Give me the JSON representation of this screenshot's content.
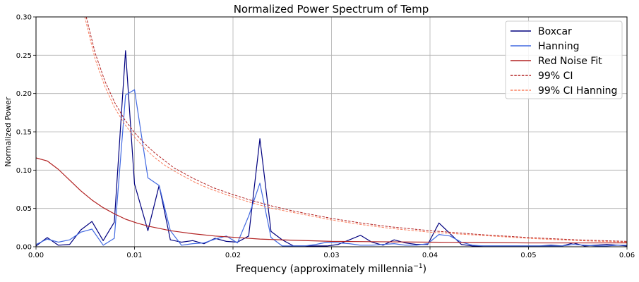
{
  "chart_data": {
    "type": "line",
    "title": "Normalized Power Spectrum of Temp",
    "xlabel": "Frequency (approximately millennia",
    "xlabel_sup": "−1",
    "xlabel_close": ")",
    "ylabel": "Normalized Power",
    "xlim": [
      0.0,
      0.06
    ],
    "ylim": [
      0.0,
      0.3
    ],
    "grid": true,
    "legend_position": "top-right",
    "x_ticks": [
      0.0,
      0.01,
      0.02,
      0.03,
      0.04,
      0.05,
      0.06
    ],
    "x_tick_labels": [
      "0.00",
      "0.01",
      "0.02",
      "0.03",
      "0.04",
      "0.05",
      "0.06"
    ],
    "y_ticks": [
      0.0,
      0.05,
      0.1,
      0.15,
      0.2,
      0.25,
      0.3
    ],
    "y_tick_labels": [
      "0.00",
      "0.05",
      "0.10",
      "0.15",
      "0.20",
      "0.25",
      "0.30"
    ],
    "series": [
      {
        "name": "Boxcar",
        "color": "#00007f",
        "style": "solid",
        "x": [
          0.0,
          0.00114,
          0.00227,
          0.00341,
          0.00455,
          0.00568,
          0.00682,
          0.00795,
          0.00909,
          0.01,
          0.01136,
          0.0125,
          0.01364,
          0.01477,
          0.01591,
          0.01705,
          0.01818,
          0.01932,
          0.02045,
          0.02159,
          0.02273,
          0.02386,
          0.025,
          0.02614,
          0.02727,
          0.02841,
          0.02955,
          0.03068,
          0.03182,
          0.03295,
          0.03409,
          0.03523,
          0.03636,
          0.0375,
          0.03864,
          0.03977,
          0.04091,
          0.04205,
          0.04318,
          0.04432,
          0.04545,
          0.04659,
          0.04773,
          0.04886,
          0.05,
          0.05114,
          0.05227,
          0.05341,
          0.05455,
          0.05568,
          0.05682,
          0.05795,
          0.05909,
          0.06
        ],
        "y": [
          0.001,
          0.012,
          0.002,
          0.003,
          0.022,
          0.033,
          0.008,
          0.032,
          0.256,
          0.082,
          0.021,
          0.08,
          0.009,
          0.006,
          0.008,
          0.004,
          0.011,
          0.007,
          0.006,
          0.014,
          0.141,
          0.02,
          0.009,
          0.001,
          0.001,
          0.001,
          0.001,
          0.003,
          0.009,
          0.015,
          0.006,
          0.002,
          0.009,
          0.005,
          0.003,
          0.003,
          0.031,
          0.017,
          0.003,
          0.001,
          0.001,
          0.001,
          0.001,
          0.001,
          0.001,
          0.001,
          0.002,
          0.001,
          0.005,
          0.001,
          0.002,
          0.003,
          0.002,
          0.001
        ]
      },
      {
        "name": "Hanning",
        "color": "#4169e1",
        "style": "solid",
        "x": [
          0.0,
          0.00114,
          0.00227,
          0.00341,
          0.00455,
          0.00568,
          0.00682,
          0.00795,
          0.00909,
          0.01,
          0.01136,
          0.0125,
          0.01364,
          0.01477,
          0.01591,
          0.01705,
          0.01818,
          0.01932,
          0.02045,
          0.02159,
          0.02273,
          0.02386,
          0.025,
          0.02614,
          0.02727,
          0.02841,
          0.02955,
          0.03068,
          0.03182,
          0.03295,
          0.03409,
          0.03523,
          0.03636,
          0.0375,
          0.03864,
          0.03977,
          0.04091,
          0.04205,
          0.04318,
          0.04432,
          0.04545,
          0.04659,
          0.04773,
          0.04886,
          0.05,
          0.05114,
          0.05227,
          0.05341,
          0.05455,
          0.05568,
          0.05682,
          0.05795,
          0.05909,
          0.06
        ],
        "y": [
          0.003,
          0.01,
          0.006,
          0.009,
          0.019,
          0.023,
          0.002,
          0.011,
          0.198,
          0.205,
          0.09,
          0.08,
          0.021,
          0.002,
          0.004,
          0.005,
          0.01,
          0.014,
          0.005,
          0.04,
          0.083,
          0.012,
          0.001,
          0.001,
          0.001,
          0.003,
          0.006,
          0.005,
          0.004,
          0.002,
          0.002,
          0.003,
          0.004,
          0.002,
          0.002,
          0.004,
          0.016,
          0.014,
          0.006,
          0.002,
          0.001,
          0.001,
          0.001,
          0.001,
          0.001,
          0.001,
          0.001,
          0.001,
          0.003,
          0.002,
          0.001,
          0.001,
          0.002,
          0.002
        ]
      },
      {
        "name": "Red Noise Fit",
        "color": "#b22222",
        "style": "solid",
        "x": [
          0.0,
          0.00114,
          0.00227,
          0.00341,
          0.00455,
          0.00568,
          0.00682,
          0.00795,
          0.00909,
          0.01023,
          0.01136,
          0.01364,
          0.01591,
          0.01818,
          0.02045,
          0.02273,
          0.025,
          0.03,
          0.035,
          0.04,
          0.045,
          0.05,
          0.055,
          0.06
        ],
        "y": [
          0.116,
          0.112,
          0.101,
          0.087,
          0.073,
          0.061,
          0.051,
          0.043,
          0.036,
          0.031,
          0.027,
          0.021,
          0.017,
          0.014,
          0.012,
          0.01,
          0.009,
          0.007,
          0.0065,
          0.006,
          0.0055,
          0.005,
          0.005,
          0.005
        ]
      },
      {
        "name": "99% CI",
        "color": "#b22222",
        "style": "dashed",
        "x": [
          0.0051,
          0.006,
          0.007,
          0.008,
          0.009,
          0.01,
          0.011,
          0.012,
          0.013,
          0.014,
          0.015,
          0.016,
          0.017,
          0.018,
          0.02,
          0.022,
          0.024,
          0.026,
          0.028,
          0.03,
          0.033,
          0.036,
          0.04,
          0.045,
          0.05,
          0.055,
          0.06
        ],
        "y": [
          0.3,
          0.253,
          0.216,
          0.188,
          0.166,
          0.149,
          0.135,
          0.123,
          0.113,
          0.103,
          0.096,
          0.089,
          0.083,
          0.077,
          0.068,
          0.06,
          0.053,
          0.047,
          0.042,
          0.037,
          0.031,
          0.026,
          0.021,
          0.016,
          0.012,
          0.009,
          0.007
        ]
      },
      {
        "name": "99% CI Hanning",
        "color": "#fa8060",
        "style": "dashed",
        "x": [
          0.00495,
          0.006,
          0.007,
          0.008,
          0.009,
          0.01,
          0.011,
          0.012,
          0.013,
          0.014,
          0.015,
          0.016,
          0.017,
          0.018,
          0.02,
          0.022,
          0.024,
          0.026,
          0.028,
          0.03,
          0.033,
          0.036,
          0.04,
          0.045,
          0.05,
          0.055,
          0.06
        ],
        "y": [
          0.3,
          0.245,
          0.209,
          0.181,
          0.16,
          0.143,
          0.129,
          0.117,
          0.107,
          0.099,
          0.092,
          0.085,
          0.079,
          0.074,
          0.065,
          0.057,
          0.05,
          0.045,
          0.04,
          0.035,
          0.029,
          0.024,
          0.019,
          0.015,
          0.011,
          0.008,
          0.006
        ]
      }
    ]
  }
}
